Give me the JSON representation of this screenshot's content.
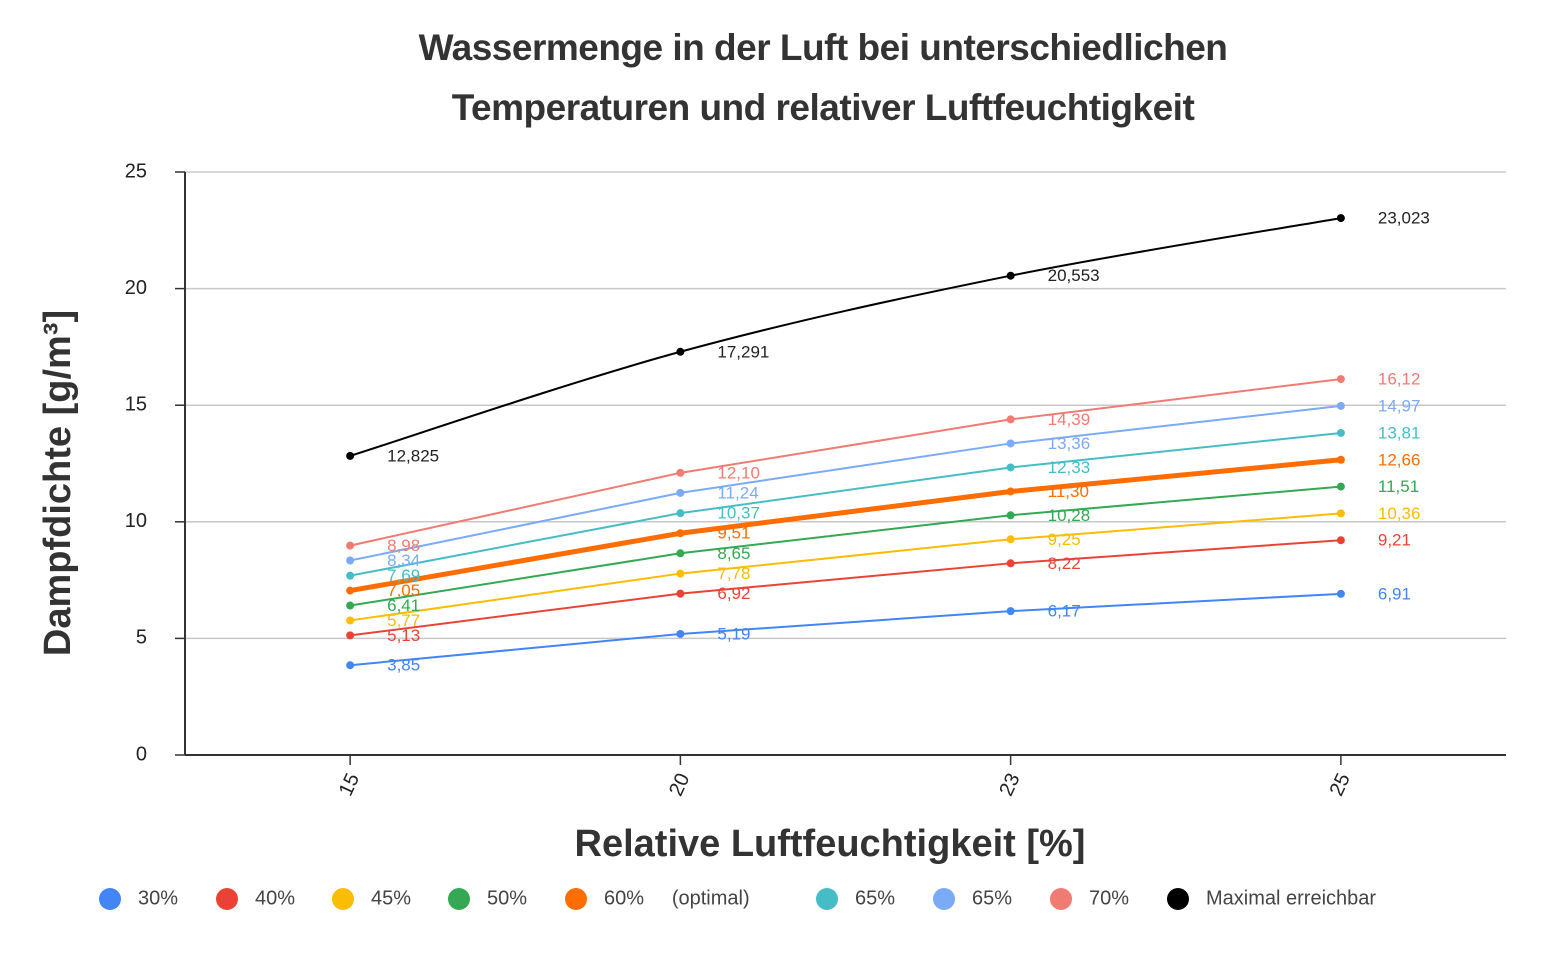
{
  "chart_data": {
    "type": "line",
    "title": "Wassermenge in der Luft bei unterschiedlichen Temperaturen und relativer Luftfeuchtigkeit",
    "x_label": "Relative Luftfeuchtigkeit [%]",
    "y_label": "Dampfdichte [g/m³]",
    "categories": [
      "15",
      "20",
      "23",
      "25"
    ],
    "ylim": [
      0,
      25
    ],
    "yticks": [
      0,
      5,
      10,
      15,
      20,
      25
    ],
    "grid": true,
    "legend": "bottom",
    "series": [
      {
        "name": "30%",
        "color": "#4285f4",
        "values": [
          3.85,
          5.19,
          6.17,
          6.91
        ],
        "value_labels": [
          "3,85",
          "5,19",
          "6,17",
          "6,91"
        ]
      },
      {
        "name": "40%",
        "color": "#ea4335",
        "values": [
          5.13,
          6.92,
          8.22,
          9.21
        ],
        "value_labels": [
          "5,13",
          "6,92",
          "8,22",
          "9,21"
        ]
      },
      {
        "name": "45%",
        "color": "#fbbc04",
        "values": [
          5.77,
          7.78,
          9.25,
          10.36
        ],
        "value_labels": [
          "5,77",
          "7,78",
          "9,25",
          "10,36"
        ]
      },
      {
        "name": "50%",
        "color": "#34a853",
        "values": [
          6.41,
          8.65,
          10.28,
          11.51
        ],
        "value_labels": [
          "6,41",
          "8,65",
          "10,28",
          "11,51"
        ]
      },
      {
        "name": "60%     (optimal)",
        "color": "#ff6d01",
        "highlight": true,
        "values": [
          7.05,
          9.51,
          11.3,
          12.66
        ],
        "value_labels": [
          "7,05",
          "9,51",
          "11,30",
          "12,66"
        ]
      },
      {
        "name": "65%",
        "color": "#46bdc6",
        "values": [
          7.69,
          10.37,
          12.33,
          13.81
        ],
        "value_labels": [
          "7,69",
          "10,37",
          "12,33",
          "13,81"
        ]
      },
      {
        "name": "65%",
        "color": "#7baaf7",
        "values": [
          8.34,
          11.24,
          13.36,
          14.97
        ],
        "value_labels": [
          "8,34",
          "11,24",
          "13,36",
          "14,97"
        ]
      },
      {
        "name": "70%",
        "color": "#f07b72",
        "values": [
          8.98,
          12.1,
          14.39,
          16.12
        ],
        "value_labels": [
          "8,98",
          "12,10",
          "14,39",
          "16,12"
        ]
      },
      {
        "name": "Maximal erreichbar",
        "color": "#000000",
        "smooth": true,
        "values": [
          12.825,
          17.291,
          20.553,
          23.023
        ],
        "value_labels": [
          "12,825",
          "17,291",
          "20,553",
          "23,023"
        ]
      }
    ]
  }
}
